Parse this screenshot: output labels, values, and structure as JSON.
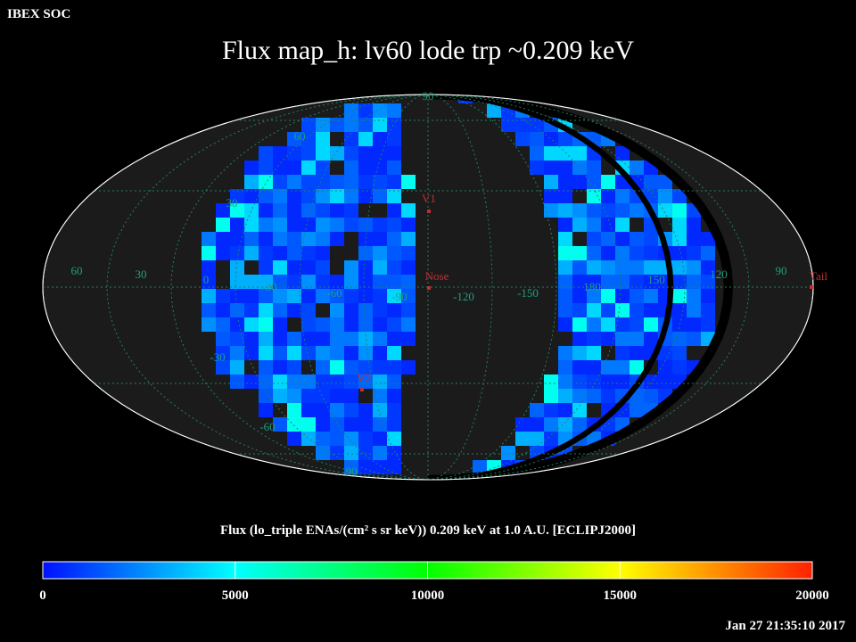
{
  "header": {
    "organization": "IBEX SOC",
    "title": "Flux   map_h: lv60 lode trp ~0.209 keV"
  },
  "colorbar": {
    "title": "Flux (lo_triple ENAs/(cm² s sr keV))  0.209 keV at 1.0 A.U. [ECLIPJ2000]",
    "min": 0,
    "max": 20000,
    "ticks": [
      "0",
      "5000",
      "10000",
      "15000",
      "20000"
    ],
    "stops": [
      "#0010ff",
      "#00ffff",
      "#00ff00",
      "#ffff00",
      "#ff2000"
    ]
  },
  "map": {
    "projection": "mollweide",
    "longitude_labels": [
      "60",
      "30",
      "0",
      "-30",
      "-60",
      "-90",
      "-120",
      "-150",
      "180",
      "150",
      "120",
      "90"
    ],
    "latitude_labels": [
      "90",
      "60",
      "30",
      "-30",
      "-60",
      "-90"
    ],
    "markers": [
      {
        "label": "V1",
        "color": "#c03030"
      },
      {
        "label": "Nose",
        "color": "#c03030"
      },
      {
        "label": "V2",
        "color": "#c03030"
      },
      {
        "label": "Tail",
        "color": "#c03030"
      }
    ],
    "grid_color": "#208060",
    "label_color": "#20a080"
  },
  "footer": {
    "timestamp": "Jan 27 21:35:10 2017"
  }
}
